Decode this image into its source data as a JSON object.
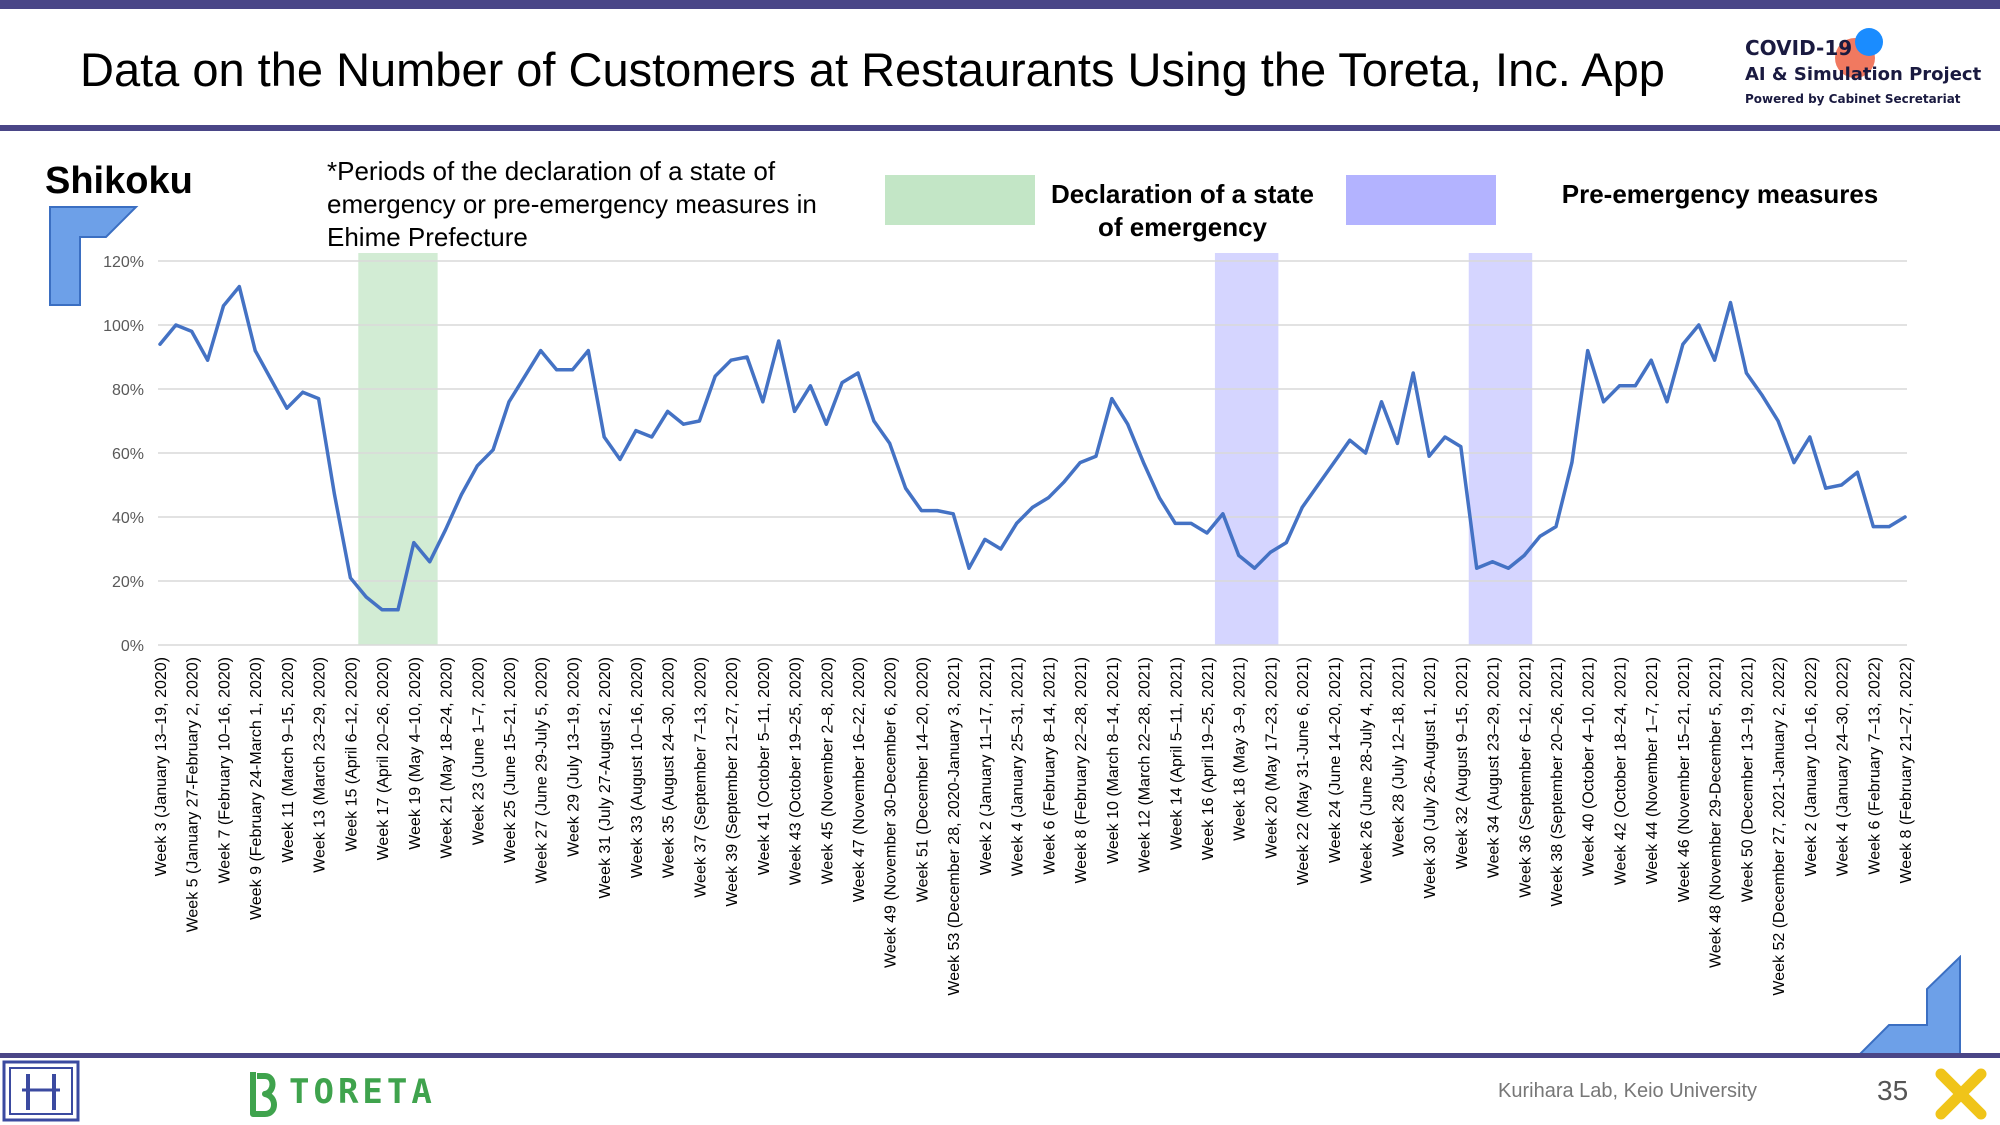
{
  "header": {
    "title": "Data on the Number of Customers at Restaurants Using the Toreta, Inc. App",
    "project_line1": "COVID-19",
    "project_line2": "AI & Simulation Project",
    "project_line3": "Powered by Cabinet Secretariat"
  },
  "region": "Shikoku",
  "note": "*Periods of the declaration of a state of emergency or pre-emergency measures in Ehime Prefecture",
  "legend": {
    "emergency_label": "Declaration of a state of emergency",
    "pre_emergency_label": "Pre-emergency measures",
    "emergency_color": "#c3e6c6",
    "pre_emergency_color": "#b3b3ff"
  },
  "footer": {
    "credit": "Kurihara Lab, Keio University",
    "page_number": "35",
    "brand": "TORETA"
  },
  "chart_data": {
    "type": "line",
    "ylim": [
      0,
      120
    ],
    "yticks": [
      "0%",
      "20%",
      "40%",
      "60%",
      "80%",
      "100%",
      "120%"
    ],
    "grid": true,
    "line_color": "#4472c4",
    "x_labels": [
      "Week 3 (January 13–19, 2020)",
      "Week 5 (January 27-February 2, 2020)",
      "Week 7 (February 10–16, 2020)",
      "Week 9 (February 24-March 1, 2020)",
      "Week 11 (March 9–15, 2020)",
      "Week 13 (March 23–29, 2020)",
      "Week 15 (April 6–12, 2020)",
      "Week 17 (April 20–26, 2020)",
      "Week 19 (May 4–10, 2020)",
      "Week 21 (May 18–24, 2020)",
      "Week 23 (June 1–7, 2020)",
      "Week 25 (June 15–21, 2020)",
      "Week 27 (June 29-July 5, 2020)",
      "Week 29 (July 13–19, 2020)",
      "Week 31 (July 27-August 2, 2020)",
      "Week 33 (August 10–16, 2020)",
      "Week 35 (August 24–30, 2020)",
      "Week 37 (September 7–13, 2020)",
      "Week 39 (September 21–27, 2020)",
      "Week 41 (October 5–11, 2020)",
      "Week 43 (October 19–25, 2020)",
      "Week 45 (November 2–8, 2020)",
      "Week 47 (November 16–22, 2020)",
      "Week 49 (November 30-December 6, 2020)",
      "Week 51 (December 14–20, 2020)",
      "Week 53 (December 28, 2020-January 3, 2021)",
      "Week 2 (January 11–17, 2021)",
      "Week 4 (January 25–31, 2021)",
      "Week 6 (February 8–14, 2021)",
      "Week 8 (February 22–28, 2021)",
      "Week 10 (March 8–14, 2021)",
      "Week 12 (March 22–28, 2021)",
      "Week 14 (April 5–11, 2021)",
      "Week 16 (April 19–25, 2021)",
      "Week 18 (May 3–9, 2021)",
      "Week 20 (May 17–23, 2021)",
      "Week 22 (May 31-June 6, 2021)",
      "Week 24 (June 14–20, 2021)",
      "Week 26 (June 28-July 4, 2021)",
      "Week 28 (July 12–18, 2021)",
      "Week 30 (July 26-August 1, 2021)",
      "Week 32 (August 9–15, 2021)",
      "Week 34 (August 23–29, 2021)",
      "Week 36 (September 6–12, 2021)",
      "Week 38 (September 20–26, 2021)",
      "Week 40 (October 4–10, 2021)",
      "Week 42 (October 18–24, 2021)",
      "Week 44 (November 1–7, 2021)",
      "Week 46 (November 15–21, 2021)",
      "Week 48 (November 29-December 5, 2021)",
      "Week 50 (December 13–19, 2021)",
      "Week 52 (December 27, 2021-January 2, 2022)",
      "Week 2 (January 10–16, 2022)",
      "Week 4 (January 24–30, 2022)",
      "Week 6 (February 7–13, 2022)",
      "Week 8 (February 21–27, 2022)"
    ],
    "values": [
      94,
      100,
      98,
      89,
      106,
      112,
      92,
      83,
      74,
      79,
      77,
      47,
      21,
      15,
      11,
      11,
      32,
      26,
      36,
      47,
      56,
      61,
      76,
      84,
      92,
      86,
      86,
      92,
      65,
      58,
      67,
      65,
      73,
      69,
      70,
      84,
      89,
      90,
      76,
      95,
      73,
      81,
      69,
      82,
      85,
      70,
      63,
      49,
      42,
      42,
      41,
      24,
      33,
      30,
      38,
      43,
      46,
      51,
      57,
      59,
      77,
      69,
      57,
      46,
      38,
      38,
      35,
      41,
      28,
      24,
      29,
      32,
      43,
      50,
      57,
      64,
      60,
      76,
      63,
      85,
      59,
      65,
      62,
      24,
      26,
      24,
      28,
      34,
      37,
      57,
      92,
      76,
      81,
      81,
      89,
      76,
      94,
      100,
      89,
      107,
      85,
      78,
      70,
      57,
      65,
      49,
      50,
      54,
      37,
      37,
      40
    ],
    "emergency_periods": [
      [
        13,
        17
      ]
    ],
    "pre_emergency_periods": [
      [
        67,
        70
      ],
      [
        83,
        86
      ]
    ]
  }
}
